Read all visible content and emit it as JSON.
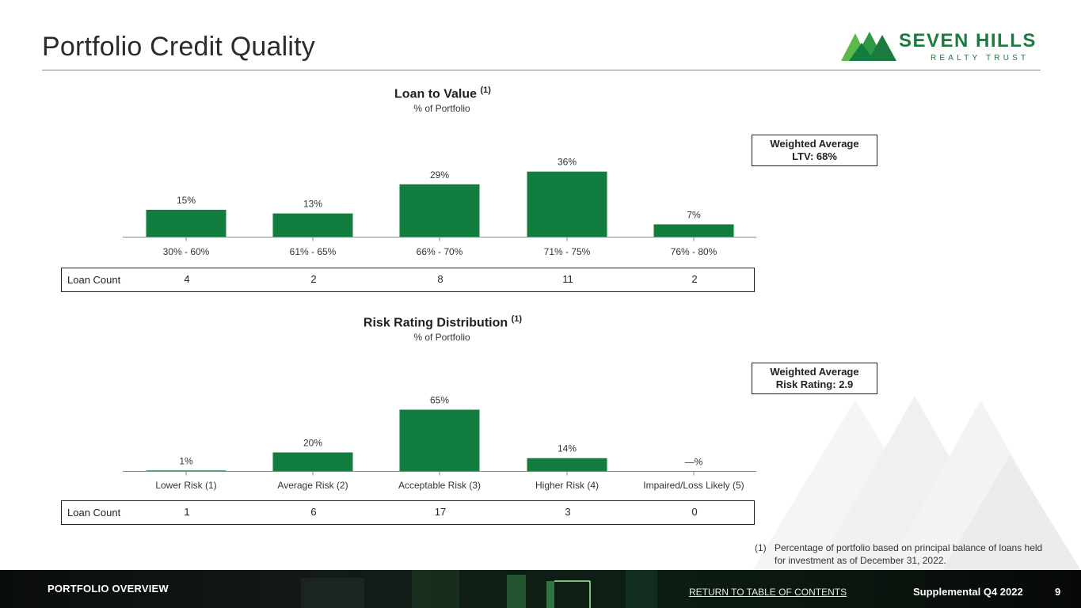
{
  "page": {
    "title": "Portfolio Credit Quality",
    "logo_name": "SEVEN HILLS",
    "logo_sub": "REALTY TRUST"
  },
  "colors": {
    "bar": "#117e3f",
    "brand": "#1b7a3e"
  },
  "chart_data": [
    {
      "type": "bar",
      "title": "Loan to Value",
      "title_note": "(1)",
      "subtitle": "% of Portfolio",
      "categories": [
        "30% - 60%",
        "61% - 65%",
        "66% - 70%",
        "71% - 75%",
        "76% - 80%"
      ],
      "values": [
        15,
        13,
        29,
        36,
        7
      ],
      "data_labels": [
        "15%",
        "13%",
        "29%",
        "36%",
        "7%"
      ],
      "ylim": [
        0,
        100
      ],
      "grid": false,
      "loan_count_label": "Loan Count",
      "loan_counts": [
        "4",
        "2",
        "8",
        "11",
        "2"
      ],
      "weighted_average": [
        "Weighted Average",
        "LTV: 68%"
      ]
    },
    {
      "type": "bar",
      "title": "Risk Rating Distribution",
      "title_note": "(1)",
      "subtitle": "% of Portfolio",
      "categories": [
        "Lower Risk (1)",
        "Average Risk (2)",
        "Acceptable Risk (3)",
        "Higher Risk (4)",
        "Impaired/Loss Likely (5)"
      ],
      "values": [
        1,
        20,
        65,
        14,
        0
      ],
      "data_labels": [
        "1%",
        "20%",
        "65%",
        "14%",
        "—%"
      ],
      "ylim": [
        0,
        100
      ],
      "grid": false,
      "loan_count_label": "Loan Count",
      "loan_counts": [
        "1",
        "6",
        "17",
        "3",
        "0"
      ],
      "weighted_average": [
        "Weighted Average",
        "Risk Rating: 2.9"
      ]
    }
  ],
  "footnote": {
    "num": "(1)",
    "text": "Percentage of portfolio based on principal balance of loans held for investment as of December 31, 2022."
  },
  "footer": {
    "section": "PORTFOLIO OVERVIEW",
    "link": "RETURN TO TABLE OF CONTENTS",
    "supplemental": "Supplemental Q4 2022",
    "page_number": "9"
  }
}
